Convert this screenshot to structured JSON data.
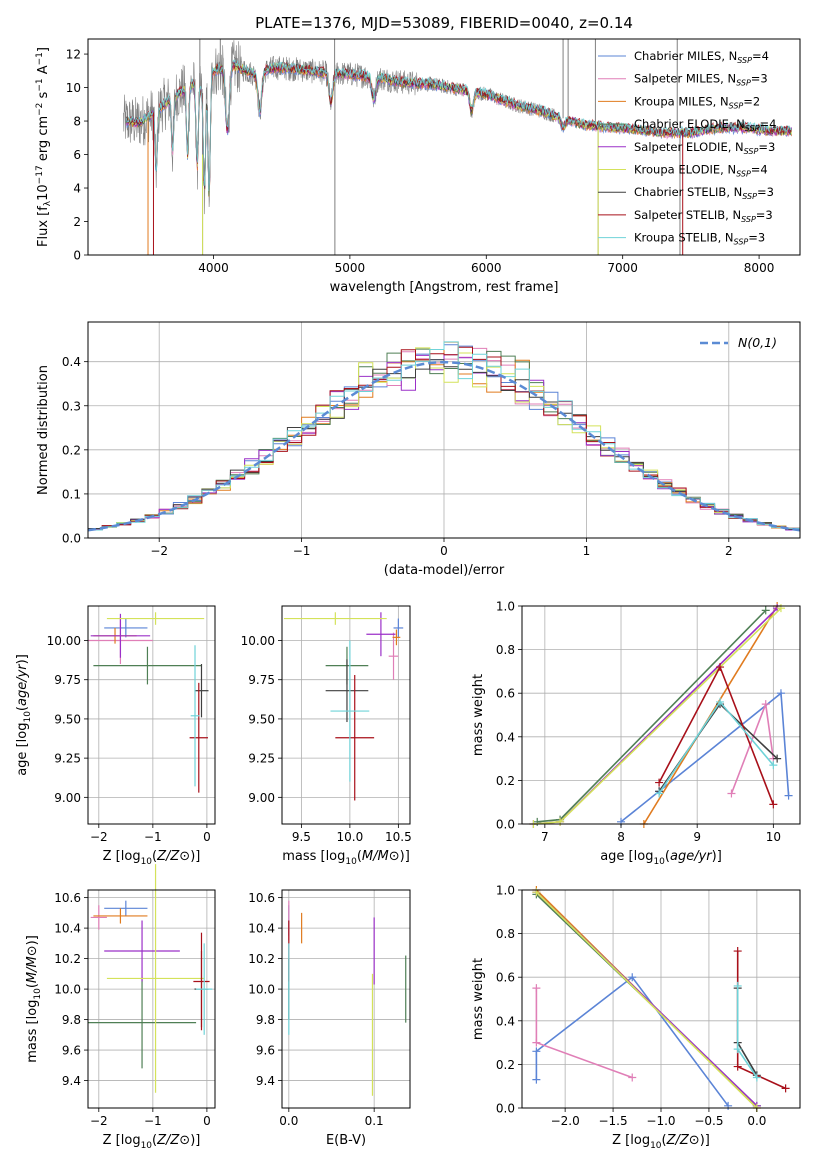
{
  "figure_title": "PLATE=1376, MJD=53089, FIBERID=0040, z=0.14",
  "models": [
    {
      "name": "Chabrier MILES",
      "nssp": "4",
      "color": "#5b84d6"
    },
    {
      "name": "Salpeter MILES",
      "nssp": "3",
      "color": "#e07fb7"
    },
    {
      "name": "Kroupa MILES",
      "nssp": "2",
      "color": "#e07b1f"
    },
    {
      "name": "Chabrier ELODIE",
      "nssp": "4",
      "color": "#4f7f55"
    },
    {
      "name": "Salpeter ELODIE",
      "nssp": "3",
      "color": "#9b30c8"
    },
    {
      "name": "Kroupa ELODIE",
      "nssp": "4",
      "color": "#d4e25a"
    },
    {
      "name": "Chabrier STELIB",
      "nssp": "3",
      "color": "#3f3f3f"
    },
    {
      "name": "Salpeter STELIB",
      "nssp": "3",
      "color": "#a8101a"
    },
    {
      "name": "Kroupa STELIB",
      "nssp": "3",
      "color": "#6fd3d8"
    }
  ],
  "chart_data": [
    {
      "id": "spectrum",
      "type": "line",
      "xlabel": "wavelength [Angstrom, rest frame]",
      "ylabel": "Flux [f_λ 10^-17 erg cm^-2 s^-1 A^-1]",
      "xlim": [
        3080,
        8300
      ],
      "ylim": [
        0,
        12.9
      ],
      "xticks": [
        4000,
        5000,
        6000,
        7000,
        8000
      ],
      "yticks": [
        0,
        2,
        4,
        6,
        8,
        10,
        12
      ],
      "legend": "upper-right",
      "data_color": "#808080",
      "data_outline": [
        [
          3340,
          8.0
        ],
        [
          3450,
          7.9
        ],
        [
          3550,
          8.4
        ],
        [
          3700,
          9.4
        ],
        [
          3850,
          10.2
        ],
        [
          3930,
          9.6
        ],
        [
          4000,
          11.0
        ],
        [
          4150,
          11.3
        ],
        [
          4300,
          10.8
        ],
        [
          4450,
          11.2
        ],
        [
          4600,
          11.1
        ],
        [
          4800,
          10.9
        ],
        [
          5000,
          10.8
        ],
        [
          5200,
          10.6
        ],
        [
          5400,
          10.3
        ],
        [
          5600,
          10.2
        ],
        [
          5800,
          9.9
        ],
        [
          6000,
          9.6
        ],
        [
          6200,
          9.0
        ],
        [
          6400,
          8.6
        ],
        [
          6550,
          8.2
        ],
        [
          6700,
          7.8
        ],
        [
          6900,
          7.6
        ],
        [
          7100,
          7.5
        ],
        [
          7300,
          7.3
        ],
        [
          7500,
          7.3
        ],
        [
          7700,
          7.6
        ],
        [
          7900,
          7.6
        ],
        [
          8100,
          7.4
        ],
        [
          8240,
          7.4
        ]
      ],
      "absorption_dips": [
        [
          3580,
          5.0
        ],
        [
          3700,
          6.2
        ],
        [
          3810,
          6.0
        ],
        [
          3880,
          5.2
        ],
        [
          3934,
          3.9
        ],
        [
          3968,
          3.6
        ],
        [
          4102,
          7.4
        ],
        [
          4340,
          8.6
        ],
        [
          4861,
          9.1
        ],
        [
          5175,
          9.3
        ],
        [
          5893,
          8.6
        ],
        [
          6563,
          7.6
        ]
      ],
      "spikes": [
        [
          3900,
          12.9
        ],
        [
          3920,
          0
        ],
        [
          4050,
          12.9
        ],
        [
          4888,
          12.9
        ],
        [
          4890,
          0
        ],
        [
          6563,
          12.9
        ],
        [
          6600,
          12.9
        ],
        [
          6800,
          12.9
        ],
        [
          6820,
          0
        ],
        [
          7400,
          12.9
        ],
        [
          7420,
          0
        ]
      ],
      "model_cut_start": [
        3520,
        3560
      ],
      "model_cut_end": [
        7440
      ]
    },
    {
      "id": "residuals",
      "type": "histogram",
      "xlabel": "(data-model)/error",
      "ylabel": "Normed distribution",
      "xlim": [
        -2.5,
        2.5
      ],
      "ylim": [
        0,
        0.49
      ],
      "xticks": [
        -2,
        -1,
        0,
        1,
        2
      ],
      "yticks": [
        0.0,
        0.1,
        0.2,
        0.3,
        0.4
      ],
      "grid": true,
      "legend": "upper-right",
      "reference_label": "N(0,1)",
      "reference_color": "#5b8bd4",
      "bin_width": 0.1,
      "bin_start": -2.5
    },
    {
      "id": "age_vs_Z",
      "type": "errorbar",
      "xlabel": "Z [log10(Z/Z⊙)]",
      "ylabel": "age [log10(age/yr)]",
      "xlim": [
        -2.2,
        0.15
      ],
      "ylim": [
        8.83,
        10.22
      ],
      "xticks": [
        -2,
        -1,
        0
      ],
      "yticks": [
        9.0,
        9.25,
        9.5,
        9.75,
        10.0
      ],
      "grid": true,
      "points": [
        {
          "m": 0,
          "x": -1.5,
          "y": 10.08,
          "xe": 0.4,
          "ye": 0.06
        },
        {
          "m": 1,
          "x": -1.6,
          "y": 10.0,
          "xe": 0.6,
          "ye": 0.15
        },
        {
          "m": 2,
          "x": -1.7,
          "y": 10.03,
          "xe": 0.4,
          "ye": 0.05
        },
        {
          "m": 3,
          "x": -1.1,
          "y": 9.84,
          "xe": 1.0,
          "ye": 0.12
        },
        {
          "m": 4,
          "x": -1.6,
          "y": 10.03,
          "xe": 0.55,
          "ye": 0.14
        },
        {
          "m": 5,
          "x": -0.95,
          "y": 10.14,
          "xe": 0.9,
          "ye": 0.04
        },
        {
          "m": 6,
          "x": -0.1,
          "y": 9.68,
          "xe": 0.13,
          "ye": 0.17
        },
        {
          "m": 7,
          "x": -0.15,
          "y": 9.38,
          "xe": 0.17,
          "ye": 0.35
        },
        {
          "m": 8,
          "x": -0.22,
          "y": 9.52,
          "xe": 0.08,
          "ye": 0.45
        }
      ]
    },
    {
      "id": "age_vs_mass",
      "type": "errorbar",
      "xlabel": "mass [log10(M/M⊙)]",
      "ylabel": "",
      "xlim": [
        9.3,
        10.62
      ],
      "ylim": [
        8.83,
        10.22
      ],
      "xticks": [
        9.5,
        10.0,
        10.5
      ],
      "yticks": [
        9.0,
        9.25,
        9.5,
        9.75,
        10.0
      ],
      "grid": true,
      "points": [
        {
          "m": 0,
          "x": 10.5,
          "y": 10.08,
          "xe": 0.05,
          "ye": 0.06
        },
        {
          "m": 1,
          "x": 10.45,
          "y": 9.9,
          "xe": 0.05,
          "ye": 0.15
        },
        {
          "m": 2,
          "x": 10.48,
          "y": 10.02,
          "xe": 0.04,
          "ye": 0.05
        },
        {
          "m": 3,
          "x": 9.97,
          "y": 9.84,
          "xe": 0.22,
          "ye": 0.12
        },
        {
          "m": 4,
          "x": 10.32,
          "y": 10.04,
          "xe": 0.15,
          "ye": 0.14
        },
        {
          "m": 5,
          "x": 9.85,
          "y": 10.14,
          "xe": 0.53,
          "ye": 0.04
        },
        {
          "m": 6,
          "x": 9.97,
          "y": 9.68,
          "xe": 0.22,
          "ye": 0.2
        },
        {
          "m": 7,
          "x": 10.05,
          "y": 9.38,
          "xe": 0.2,
          "ye": 0.4
        },
        {
          "m": 8,
          "x": 10.0,
          "y": 9.55,
          "xe": 0.2,
          "ye": 0.45
        }
      ]
    },
    {
      "id": "weight_vs_age",
      "type": "line",
      "xlabel": "age [log10(age/yr)]",
      "ylabel": "mass weight",
      "xlim": [
        6.7,
        10.35
      ],
      "ylim": [
        0,
        1.0
      ],
      "xticks": [
        7,
        8,
        9,
        10
      ],
      "yticks": [
        0.0,
        0.2,
        0.4,
        0.6,
        0.8,
        1.0
      ],
      "grid": true,
      "series": [
        {
          "m": 0,
          "points": [
            [
              8.0,
              0.01
            ],
            [
              8.5,
              0.15
            ],
            [
              10.1,
              0.6
            ],
            [
              10.2,
              0.13
            ]
          ]
        },
        {
          "m": 1,
          "points": [
            [
              9.45,
              0.14
            ],
            [
              9.9,
              0.55
            ],
            [
              10.0,
              0.3
            ]
          ]
        },
        {
          "m": 2,
          "points": [
            [
              8.3,
              0.0
            ],
            [
              10.05,
              1.0
            ]
          ]
        },
        {
          "m": 3,
          "points": [
            [
              6.9,
              0.01
            ],
            [
              7.2,
              0.02
            ],
            [
              9.9,
              0.98
            ]
          ]
        },
        {
          "m": 4,
          "points": [
            [
              6.85,
              0.0
            ],
            [
              7.2,
              0.01
            ],
            [
              10.05,
              0.99
            ]
          ]
        },
        {
          "m": 5,
          "points": [
            [
              6.85,
              0.0
            ],
            [
              7.2,
              0.01
            ],
            [
              10.1,
              0.99
            ]
          ]
        },
        {
          "m": 6,
          "points": [
            [
              8.5,
              0.15
            ],
            [
              9.3,
              0.55
            ],
            [
              10.05,
              0.3
            ]
          ]
        },
        {
          "m": 7,
          "points": [
            [
              8.5,
              0.19
            ],
            [
              9.3,
              0.72
            ],
            [
              10.0,
              0.09
            ]
          ]
        },
        {
          "m": 8,
          "points": [
            [
              8.5,
              0.14
            ],
            [
              9.3,
              0.56
            ],
            [
              10.0,
              0.27
            ]
          ]
        }
      ]
    },
    {
      "id": "mass_vs_Z",
      "type": "errorbar",
      "xlabel": "Z [log10(Z/Z⊙)]",
      "ylabel": "mass [log10(M/M⊙)]",
      "xlim": [
        -2.2,
        0.15
      ],
      "ylim": [
        9.22,
        10.65
      ],
      "xticks": [
        -2,
        -1,
        0
      ],
      "yticks": [
        9.4,
        9.6,
        9.8,
        10.0,
        10.2,
        10.4,
        10.6
      ],
      "grid": true,
      "points": [
        {
          "m": 0,
          "x": -1.5,
          "y": 10.53,
          "xe": 0.4,
          "ye": 0.05
        },
        {
          "m": 1,
          "x": -2.0,
          "y": 10.47,
          "xe": 0.15,
          "ye": 0.08
        },
        {
          "m": 2,
          "x": -1.6,
          "y": 10.48,
          "xe": 0.5,
          "ye": 0.05
        },
        {
          "m": 3,
          "x": -1.2,
          "y": 9.78,
          "xe": 1.0,
          "ye": 0.3
        },
        {
          "m": 4,
          "x": -1.2,
          "y": 10.25,
          "xe": 0.7,
          "ye": 0.2
        },
        {
          "m": 5,
          "x": -0.95,
          "y": 10.07,
          "xe": 0.9,
          "ye": 0.75
        },
        {
          "m": 6,
          "x": -0.1,
          "y": 10.0,
          "xe": 0.13,
          "ye": 0.25
        },
        {
          "m": 7,
          "x": -0.1,
          "y": 10.05,
          "xe": 0.15,
          "ye": 0.32
        },
        {
          "m": 8,
          "x": -0.05,
          "y": 10.0,
          "xe": 0.15,
          "ye": 0.3
        }
      ]
    },
    {
      "id": "mass_vs_EBV",
      "type": "errorbar",
      "xlabel": "E(B-V)",
      "ylabel": "",
      "xlim": [
        -0.008,
        0.142
      ],
      "ylim": [
        9.22,
        10.65
      ],
      "xticks": [
        0.0,
        0.1
      ],
      "yticks": [
        9.4,
        9.6,
        9.8,
        10.0,
        10.2,
        10.4,
        10.6
      ],
      "grid": true,
      "points": [
        {
          "m": 0,
          "x": 0.0,
          "y": 10.45,
          "xe": 0,
          "ye": 0.1
        },
        {
          "m": 1,
          "x": 0.0,
          "y": 10.45,
          "xe": 0,
          "ye": 0.13
        },
        {
          "m": 2,
          "x": 0.015,
          "y": 10.4,
          "xe": 0,
          "ye": 0.1
        },
        {
          "m": 3,
          "x": 0.137,
          "y": 10.0,
          "xe": 0,
          "ye": 0.22
        },
        {
          "m": 4,
          "x": 0.1,
          "y": 10.25,
          "xe": 0,
          "ye": 0.22
        },
        {
          "m": 5,
          "x": 0.098,
          "y": 9.7,
          "xe": 0,
          "ye": 0.4
        },
        {
          "m": 6,
          "x": 0.0,
          "y": 10.0,
          "xe": 0,
          "ye": 0.2
        },
        {
          "m": 7,
          "x": 0.0,
          "y": 10.25,
          "xe": 0,
          "ye": 0.2
        },
        {
          "m": 8,
          "x": 0.0,
          "y": 10.0,
          "xe": 0,
          "ye": 0.3
        }
      ]
    },
    {
      "id": "weight_vs_Z",
      "type": "line",
      "xlabel": "Z [log10(Z/Z⊙)]",
      "ylabel": "mass weight",
      "xlim": [
        -2.45,
        0.45
      ],
      "ylim": [
        0,
        1.0
      ],
      "xticks": [
        -2.0,
        -1.5,
        -1.0,
        -0.5,
        0.0
      ],
      "yticks": [
        0.0,
        0.2,
        0.4,
        0.6,
        0.8,
        1.0
      ],
      "grid": true,
      "series": [
        {
          "m": 0,
          "points": [
            [
              -0.3,
              0.01
            ],
            [
              -1.3,
              0.6
            ],
            [
              -2.3,
              0.26
            ],
            [
              -2.3,
              0.13
            ]
          ]
        },
        {
          "m": 1,
          "points": [
            [
              -1.3,
              0.14
            ],
            [
              -2.3,
              0.3
            ],
            [
              -2.3,
              0.55
            ]
          ]
        },
        {
          "m": 2,
          "points": [
            [
              -2.3,
              1.0
            ],
            [
              0.0,
              0.0
            ]
          ]
        },
        {
          "m": 3,
          "points": [
            [
              -2.3,
              0.98
            ],
            [
              0.0,
              0.01
            ]
          ]
        },
        {
          "m": 4,
          "points": [
            [
              -2.3,
              0.99
            ],
            [
              0.0,
              0.01
            ]
          ]
        },
        {
          "m": 5,
          "points": [
            [
              -2.3,
              0.99
            ],
            [
              0.0,
              0.0
            ]
          ]
        },
        {
          "m": 6,
          "points": [
            [
              -0.2,
              0.55
            ],
            [
              -0.2,
              0.3
            ],
            [
              0.0,
              0.15
            ]
          ]
        },
        {
          "m": 7,
          "points": [
            [
              -0.2,
              0.72
            ],
            [
              -0.2,
              0.19
            ],
            [
              0.3,
              0.09
            ]
          ]
        },
        {
          "m": 8,
          "points": [
            [
              -0.2,
              0.56
            ],
            [
              -0.2,
              0.27
            ],
            [
              0.0,
              0.14
            ]
          ]
        }
      ]
    }
  ]
}
